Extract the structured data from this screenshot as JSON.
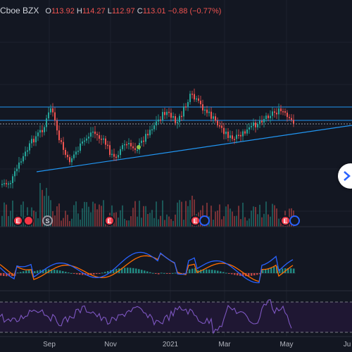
{
  "legend": {
    "symbol": "Cboe BZX",
    "open_label": "O",
    "open": "113.92",
    "high_label": "H",
    "high": "114.27",
    "low_label": "L",
    "low": "112.97",
    "close_label": "C",
    "close": "113.01",
    "change": "−0.88 (−0.77%)"
  },
  "time_axis": [
    "Sep",
    "Nov",
    "2021",
    "Mar",
    "May",
    "Ju"
  ],
  "events": [
    {
      "letter": "E",
      "type": "e"
    },
    {
      "letter": "",
      "type": "e"
    },
    {
      "letter": "S",
      "type": "s"
    },
    {
      "letter": "E",
      "type": "e"
    },
    {
      "letter": "E",
      "type": "e"
    },
    {
      "letter": "",
      "type": "d"
    },
    {
      "letter": "E",
      "type": "e"
    },
    {
      "letter": "",
      "type": "d"
    }
  ],
  "colors": {
    "background": "#131722",
    "up_candle": "#26a69a",
    "down_candle": "#ef5350",
    "trendline": "#2196f3",
    "macd_line": "#2962ff",
    "signal_line": "#ff6d00",
    "rsi_line": "#7e57c2",
    "rsi_band": "#2a1f3d"
  },
  "icons": {
    "scroll_button": "chevron-right-icon"
  }
}
